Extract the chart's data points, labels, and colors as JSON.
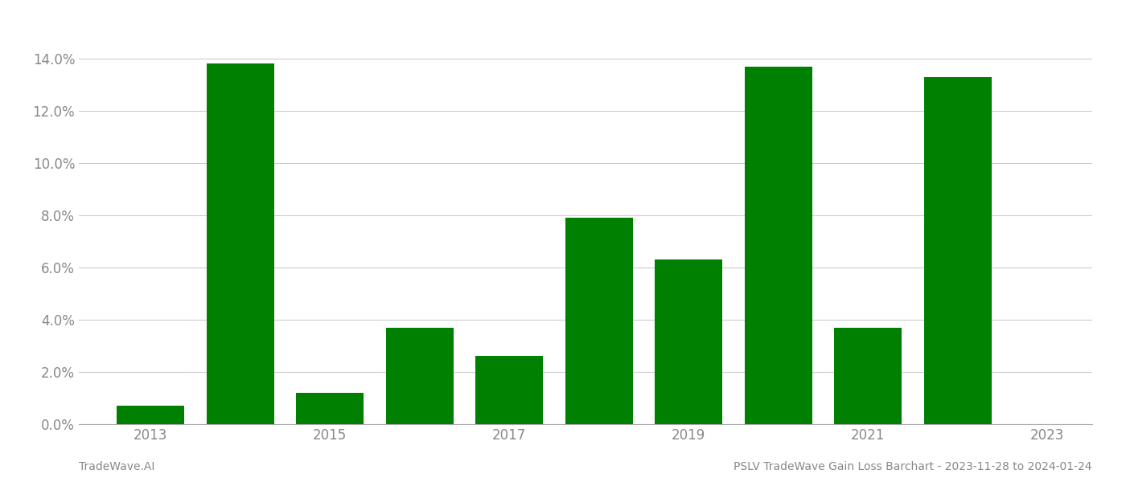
{
  "years": [
    2013,
    2014,
    2015,
    2016,
    2017,
    2018,
    2019,
    2020,
    2021,
    2022
  ],
  "values": [
    0.007,
    0.138,
    0.012,
    0.037,
    0.026,
    0.079,
    0.063,
    0.137,
    0.037,
    0.133
  ],
  "bar_color": "#008000",
  "background_color": "#ffffff",
  "grid_color": "#cccccc",
  "axis_label_color": "#888888",
  "ylim": [
    0,
    0.155
  ],
  "yticks": [
    0.0,
    0.02,
    0.04,
    0.06,
    0.08,
    0.1,
    0.12,
    0.14
  ],
  "xtick_positions": [
    2013,
    2015,
    2017,
    2019,
    2021,
    2023
  ],
  "xtick_labels": [
    "2013",
    "2015",
    "2017",
    "2019",
    "2021",
    "2023"
  ],
  "xlim": [
    2012.2,
    2023.5
  ],
  "footer_left": "TradeWave.AI",
  "footer_right": "PSLV TradeWave Gain Loss Barchart - 2023-11-28 to 2024-01-24",
  "tick_fontsize": 12,
  "footer_fontsize": 10,
  "bar_width": 0.75
}
